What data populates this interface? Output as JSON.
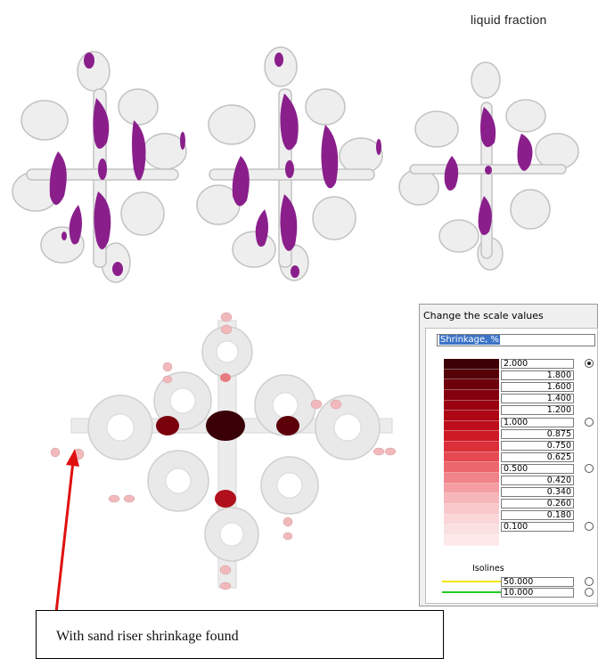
{
  "top": {
    "title": "liquid fraction"
  },
  "dialog": {
    "title": "Change the scale values",
    "parameter": "Shrinkage, %",
    "scale": [
      {
        "value": "2.000",
        "align": "left",
        "radio": true,
        "checked": true
      },
      {
        "value": "1.800",
        "align": "right"
      },
      {
        "value": "1.600",
        "align": "right"
      },
      {
        "value": "1.400",
        "align": "right"
      },
      {
        "value": "1.200",
        "align": "right"
      },
      {
        "value": "1.000",
        "align": "left",
        "radio": true
      },
      {
        "value": "0.875",
        "align": "right"
      },
      {
        "value": "0.750",
        "align": "right"
      },
      {
        "value": "0.625",
        "align": "right"
      },
      {
        "value": "0.500",
        "align": "left",
        "radio": true
      },
      {
        "value": "0.420",
        "align": "right"
      },
      {
        "value": "0.340",
        "align": "right"
      },
      {
        "value": "0.260",
        "align": "right"
      },
      {
        "value": "0.180",
        "align": "right"
      },
      {
        "value": "0.100",
        "align": "left",
        "radio": true
      }
    ],
    "swatch_colors": [
      "#3d0006",
      "#560008",
      "#6e000b",
      "#85000e",
      "#9a0211",
      "#ae0714",
      "#bf0e1b",
      "#cf1b26",
      "#dc2f39",
      "#e54a52",
      "#ec666d",
      "#f1838a",
      "#f49ea4",
      "#f6b6ba",
      "#f8c8cb",
      "#fad6d8",
      "#fbe0e2",
      "#fde9ea"
    ],
    "isolines_label": "Isolines",
    "isolines": [
      {
        "value": "50.000",
        "color": "#f2e600"
      },
      {
        "value": "10.000",
        "color": "#22cc22"
      }
    ]
  },
  "caption": {
    "text": "With sand riser shrinkage found"
  },
  "colors": {
    "accent_purple": "#8a1f8c",
    "shrinkage_dark": "#3a0008",
    "arrow_red": "#e01010"
  }
}
